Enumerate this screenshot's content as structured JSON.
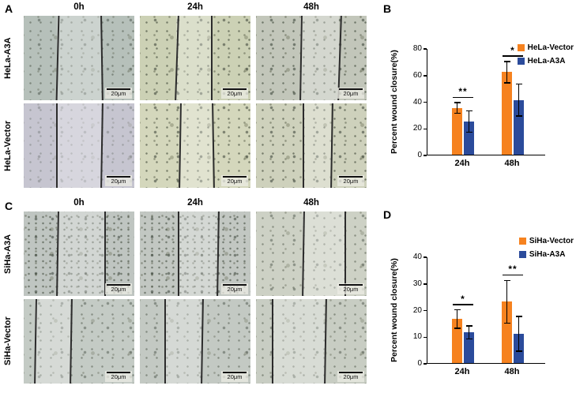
{
  "panels": {
    "A": {
      "label": "A",
      "col_headers": [
        "0h",
        "24h",
        "48h"
      ],
      "row_labels": [
        "HeLa-A3A",
        "HeLa-Vector"
      ],
      "scale_label": "20μm",
      "tiles": [
        {
          "row": 0,
          "col": 0,
          "time": "0h",
          "base": "#b6c0ba",
          "density": "medium",
          "lines": [
            [
              0.3,
              1.5
            ],
            [
              0.7,
              -1
            ]
          ]
        },
        {
          "row": 0,
          "col": 1,
          "time": "24h",
          "base": "#ccd1b5",
          "density": "dense",
          "lines": [
            [
              0.33,
              2
            ],
            [
              0.64,
              0
            ]
          ]
        },
        {
          "row": 0,
          "col": 2,
          "time": "48h",
          "base": "#c2c6ba",
          "density": "dense",
          "lines": [
            [
              0.4,
              1
            ],
            [
              0.75,
              2
            ]
          ]
        },
        {
          "row": 1,
          "col": 0,
          "time": "0h",
          "base": "#c6c5d0",
          "density": "sparse",
          "lines": [
            [
              0.29,
              0
            ],
            [
              0.7,
              1
            ]
          ]
        },
        {
          "row": 1,
          "col": 1,
          "time": "24h",
          "base": "#d4d7bc",
          "density": "dense",
          "lines": [
            [
              0.36,
              1
            ],
            [
              0.66,
              -1
            ]
          ]
        },
        {
          "row": 1,
          "col": 2,
          "time": "48h",
          "base": "#ced1bc",
          "density": "dense",
          "lines": [
            [
              0.42,
              0
            ],
            [
              0.68,
              1
            ]
          ]
        }
      ]
    },
    "B": {
      "label": "B"
    },
    "C": {
      "label": "C",
      "col_headers": [
        "0h",
        "24h",
        "48h"
      ],
      "row_labels": [
        "SiHa-A3A",
        "SiHa-Vector"
      ],
      "scale_label": "20μm",
      "tiles": [
        {
          "row": 0,
          "col": 0,
          "time": "0h",
          "base": "#bfc5c1",
          "density": "fine",
          "lines": [
            [
              0.3,
              1
            ],
            [
              0.73,
              0
            ]
          ]
        },
        {
          "row": 0,
          "col": 1,
          "time": "24h",
          "base": "#c2c7c2",
          "density": "fine",
          "lines": [
            [
              0.34,
              0
            ],
            [
              0.7,
              1
            ]
          ]
        },
        {
          "row": 0,
          "col": 2,
          "time": "48h",
          "base": "#cdd1c5",
          "density": "medium",
          "lines": [
            [
              0.42,
              1
            ],
            [
              0.8,
              0
            ]
          ]
        },
        {
          "row": 1,
          "col": 0,
          "time": "0h",
          "base": "#c4cbc5",
          "density": "medium",
          "lines": [
            [
              0.1,
              1
            ],
            [
              0.42,
              1
            ]
          ]
        },
        {
          "row": 1,
          "col": 1,
          "time": "24h",
          "base": "#c3c9c3",
          "density": "medium",
          "lines": [
            [
              0.22,
              0
            ],
            [
              0.56,
              1
            ]
          ]
        },
        {
          "row": 1,
          "col": 2,
          "time": "48h",
          "base": "#c8cdc3",
          "density": "medium",
          "lines": [
            [
              0.14,
              0
            ],
            [
              0.62,
              1
            ]
          ]
        }
      ]
    },
    "D": {
      "label": "D"
    }
  },
  "chart_data": [
    {
      "id": "B",
      "type": "bar",
      "title": "",
      "categories": [
        "24h",
        "48h"
      ],
      "series": [
        {
          "name": "HeLa-Vector",
          "color": "#F6821F",
          "values": [
            35,
            62
          ],
          "errors": [
            4,
            8
          ]
        },
        {
          "name": "HeLa-A3A",
          "color": "#2B4B9B",
          "values": [
            25,
            41
          ],
          "errors": [
            8,
            12
          ]
        }
      ],
      "significance": [
        "**",
        "*"
      ],
      "xlabel": "",
      "ylabel": "Percent wound closure(%)",
      "ylim": [
        0,
        80
      ],
      "yticks": [
        0,
        20,
        40,
        60,
        80
      ],
      "grid": false,
      "legend_position": "top-right"
    },
    {
      "id": "D",
      "type": "bar",
      "title": "",
      "categories": [
        "24h",
        "48h"
      ],
      "series": [
        {
          "name": "SiHa-Vector",
          "color": "#F6821F",
          "values": [
            16.5,
            23
          ],
          "errors": [
            3.5,
            8
          ]
        },
        {
          "name": "SiHa-A3A",
          "color": "#2B4B9B",
          "values": [
            11.5,
            11
          ],
          "errors": [
            2.5,
            6.5
          ]
        }
      ],
      "significance": [
        "*",
        "**"
      ],
      "xlabel": "",
      "ylabel": "Percent wound closure(%)",
      "ylim": [
        0,
        40
      ],
      "yticks": [
        0,
        10,
        20,
        30,
        40
      ],
      "grid": false,
      "legend_position": "top-right"
    }
  ]
}
